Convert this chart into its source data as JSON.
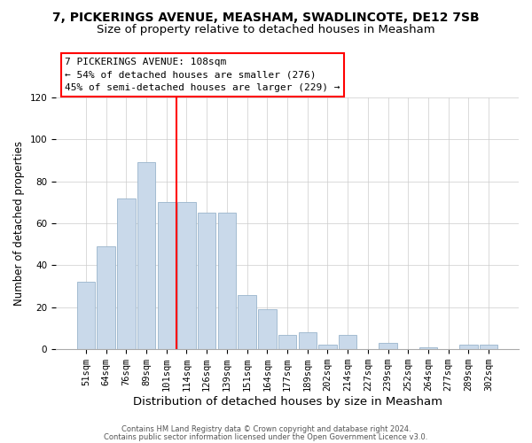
{
  "title": "7, PICKERINGS AVENUE, MEASHAM, SWADLINCOTE, DE12 7SB",
  "subtitle": "Size of property relative to detached houses in Measham",
  "xlabel": "Distribution of detached houses by size in Measham",
  "ylabel": "Number of detached properties",
  "bar_labels": [
    "51sqm",
    "64sqm",
    "76sqm",
    "89sqm",
    "101sqm",
    "114sqm",
    "126sqm",
    "139sqm",
    "151sqm",
    "164sqm",
    "177sqm",
    "189sqm",
    "202sqm",
    "214sqm",
    "227sqm",
    "239sqm",
    "252sqm",
    "264sqm",
    "277sqm",
    "289sqm",
    "302sqm"
  ],
  "bar_values": [
    32,
    49,
    72,
    89,
    70,
    70,
    65,
    65,
    26,
    19,
    7,
    8,
    2,
    7,
    0,
    3,
    0,
    1,
    0,
    2,
    2
  ],
  "bar_color": "#c9d9ea",
  "bar_edge_color": "#9ab5cc",
  "vline_color": "red",
  "vline_pos": 4.5,
  "ylim": [
    0,
    120
  ],
  "yticks": [
    0,
    20,
    40,
    60,
    80,
    100,
    120
  ],
  "annotation_title": "7 PICKERINGS AVENUE: 108sqm",
  "annotation_line1": "← 54% of detached houses are smaller (276)",
  "annotation_line2": "45% of semi-detached houses are larger (229) →",
  "footnote1": "Contains HM Land Registry data © Crown copyright and database right 2024.",
  "footnote2": "Contains public sector information licensed under the Open Government Licence v3.0.",
  "title_fontsize": 10,
  "subtitle_fontsize": 9.5,
  "xlabel_fontsize": 9.5,
  "ylabel_fontsize": 8.5,
  "tick_fontsize": 7.5,
  "annot_fontsize": 8,
  "footnote_fontsize": 6
}
